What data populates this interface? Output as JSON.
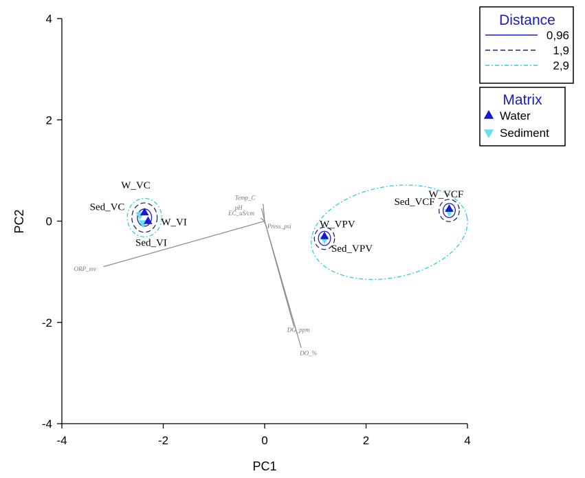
{
  "chart_data": {
    "type": "scatter",
    "title": "",
    "xlabel": "PC1",
    "ylabel": "PC2",
    "xlim": [
      -4,
      4
    ],
    "ylim": [
      -4,
      4
    ],
    "x_ticks": [
      -4,
      -2,
      0,
      2,
      4
    ],
    "y_ticks": [
      -4,
      -2,
      0,
      2,
      4
    ],
    "x_tick_labels": [
      "-4",
      "-2",
      "0",
      "2",
      "4"
    ],
    "y_tick_labels": [
      "-4",
      "-2",
      "0",
      "2",
      "4"
    ],
    "grid": false,
    "points": [
      {
        "label": "W_VC",
        "matrix": "Water",
        "x": -2.37,
        "y": 0.17
      },
      {
        "label": "Sed_VC",
        "matrix": "Sediment",
        "x": -2.46,
        "y": 0.12
      },
      {
        "label": "W_VI",
        "matrix": "Water",
        "x": -2.3,
        "y": 0.0
      },
      {
        "label": "Sed_VI",
        "matrix": "Sediment",
        "x": -2.4,
        "y": -0.04
      },
      {
        "label": "W_VPV",
        "matrix": "Water",
        "x": 1.18,
        "y": -0.3
      },
      {
        "label": "Sed_VPV",
        "matrix": "Sediment",
        "x": 1.18,
        "y": -0.36
      },
      {
        "label": "W_VCF",
        "matrix": "Water",
        "x": 3.64,
        "y": 0.24
      },
      {
        "label": "Sed_VCF",
        "matrix": "Sediment",
        "x": 3.64,
        "y": 0.18
      }
    ],
    "vectors": [
      {
        "label": "Temp_C",
        "x": -0.03,
        "y": 0.34
      },
      {
        "label": "pH",
        "x": -0.06,
        "y": 0.25
      },
      {
        "label": "EC_uS/cm",
        "x": -0.08,
        "y": 0.06
      },
      {
        "label": "Press_psi",
        "x": 0.0,
        "y": -0.05
      },
      {
        "label": "ORP_mv",
        "x": -3.18,
        "y": -0.9
      },
      {
        "label": "DO_ppm",
        "x": 0.58,
        "y": -2.09
      },
      {
        "label": "DO_%",
        "x": 0.72,
        "y": -2.5
      }
    ],
    "cluster_contours": [
      {
        "distance": "0,96",
        "style": "solid",
        "color": "#1a1acc",
        "cx": -2.37,
        "cy": 0.07,
        "rx": 0.14,
        "ry": 0.17
      },
      {
        "distance": "1,9",
        "style": "dashed",
        "color": "#1a2a66",
        "cx": -2.37,
        "cy": 0.07,
        "rx": 0.25,
        "ry": 0.29
      },
      {
        "distance": "2,9",
        "style": "dash-dot",
        "color": "#33cce0",
        "cx": -2.37,
        "cy": 0.07,
        "rx": 0.34,
        "ry": 0.38
      },
      {
        "distance": "0,96",
        "style": "solid",
        "color": "#1a1acc",
        "cx": 1.18,
        "cy": -0.34,
        "rx": 0.12,
        "ry": 0.14
      },
      {
        "distance": "1,9",
        "style": "dashed",
        "color": "#1a2a66",
        "cx": 1.18,
        "cy": -0.34,
        "rx": 0.2,
        "ry": 0.22
      },
      {
        "distance": "0,96",
        "style": "solid",
        "color": "#1a1acc",
        "cx": 3.64,
        "cy": 0.21,
        "rx": 0.12,
        "ry": 0.14
      },
      {
        "distance": "1,9",
        "style": "dashed",
        "color": "#1a2a66",
        "cx": 3.64,
        "cy": 0.21,
        "rx": 0.2,
        "ry": 0.22
      },
      {
        "distance": "2,9",
        "style": "dash-dot",
        "color": "#33cce0",
        "cx": 2.46,
        "cy": -0.22,
        "rx": 1.56,
        "ry": 0.9,
        "rotate_deg": -11
      }
    ],
    "legends": [
      {
        "title": "Distance",
        "placement": "top-right",
        "entries": [
          {
            "label": "0,96",
            "style": "solid",
            "color": "#1a1acc"
          },
          {
            "label": "1,9",
            "style": "dashed",
            "color": "#1a2a66"
          },
          {
            "label": "2,9",
            "style": "dash-dot",
            "color": "#33cce0"
          }
        ]
      },
      {
        "title": "Matrix",
        "placement": "right",
        "entries": [
          {
            "label": "Water",
            "marker": "triangle-up",
            "color": "#1a1acc"
          },
          {
            "label": "Sediment",
            "marker": "triangle-down",
            "color": "#66e0f0"
          }
        ]
      }
    ]
  }
}
